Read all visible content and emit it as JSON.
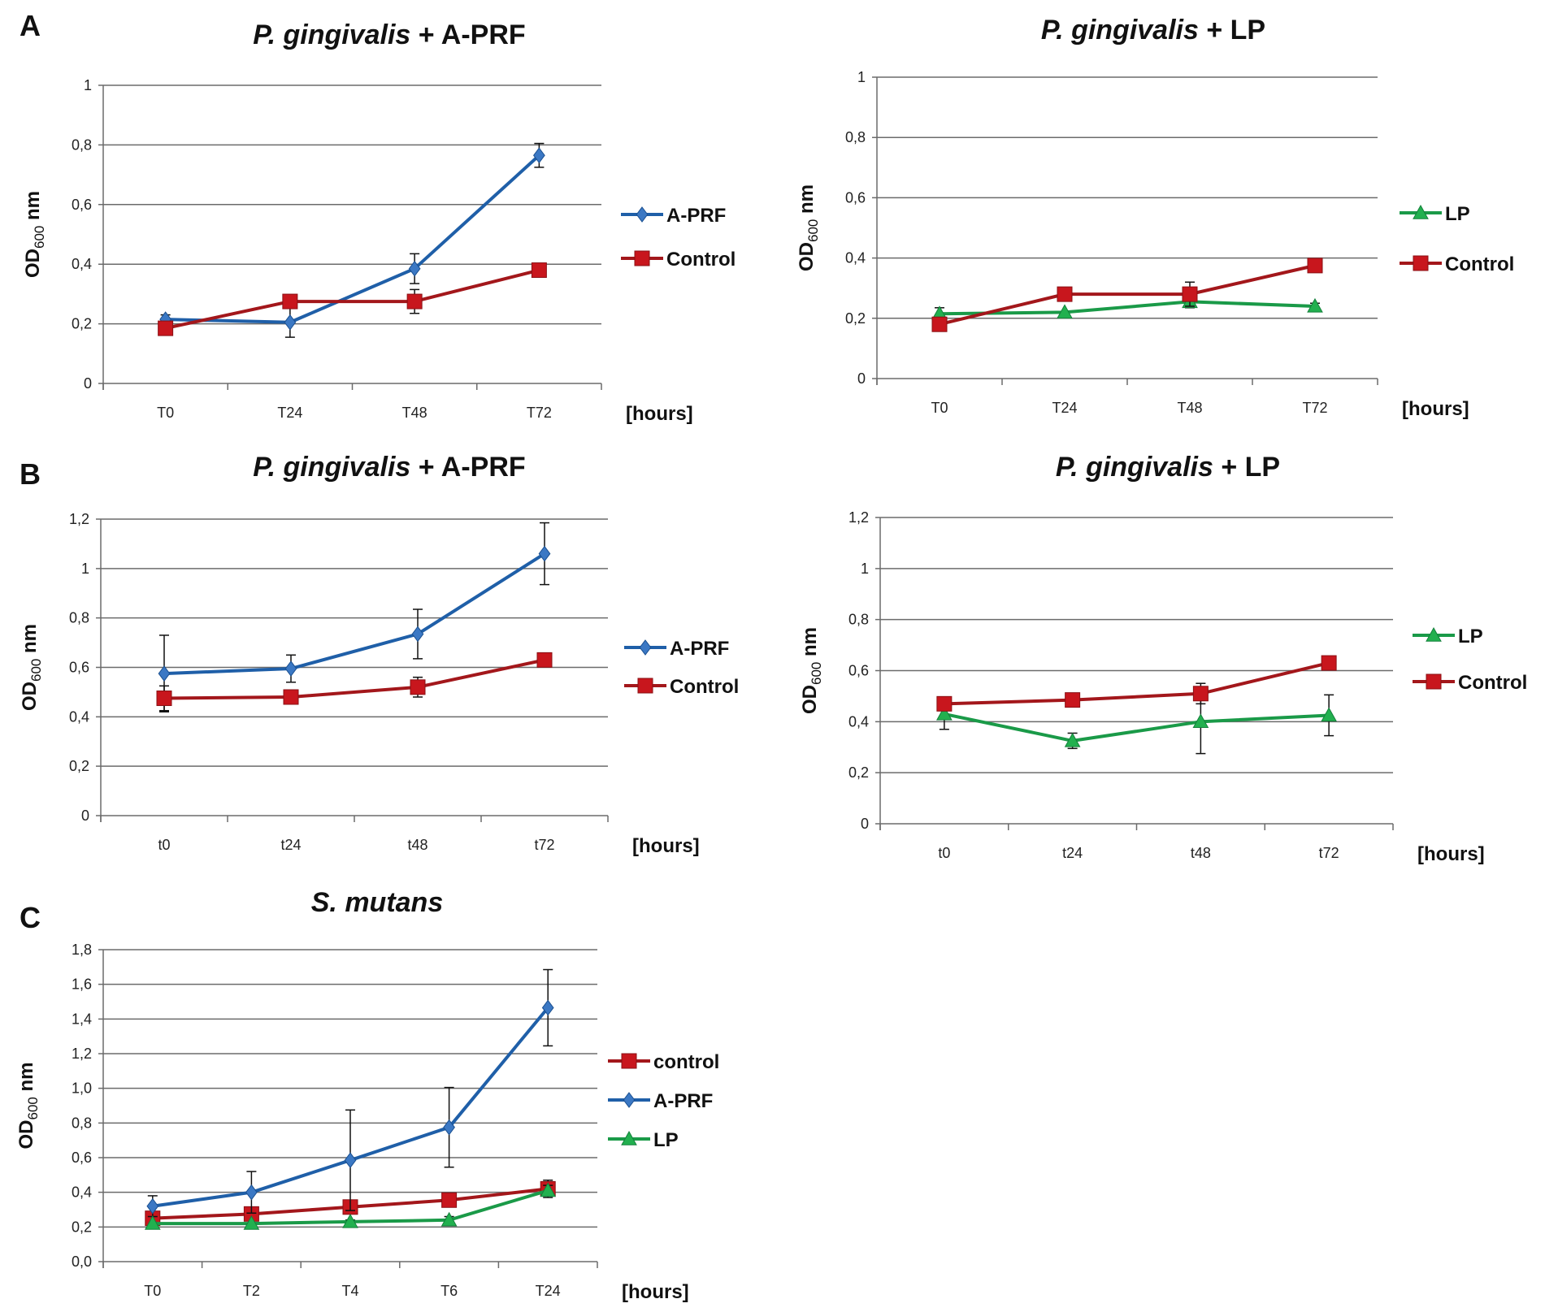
{
  "colors": {
    "blue": "#1f5fa8",
    "red": "#a3171b",
    "red_marker": "#c8161d",
    "green": "#1a9a48",
    "green_marker": "#22b04f",
    "grid": "#6b6b6b"
  },
  "chart_data": [
    {
      "panel_letter": "A",
      "type": "line",
      "title_italic": "P. gingivalis",
      "title_rest": " + A-PRF",
      "ylabel": "OD",
      "ylabel_sub": "600",
      "ylabel_unit": " nm",
      "xlabel": "[hours]",
      "categories": [
        "T0",
        "T24",
        "T48",
        "T72"
      ],
      "ylim": [
        0,
        1
      ],
      "yticks": [
        0,
        0.2,
        0.4,
        0.6,
        0.8,
        1
      ],
      "ytick_labels": [
        "0",
        "0,2",
        "0,4",
        "0,6",
        "0,8",
        "1"
      ],
      "grid": true,
      "legend": "right",
      "series": [
        {
          "name": "A-PRF",
          "marker": "diamond",
          "color": "blue",
          "values": [
            0.215,
            0.205,
            0.385,
            0.765
          ],
          "errors": [
            0.015,
            0.05,
            0.05,
            0.04
          ]
        },
        {
          "name": "Control",
          "marker": "square",
          "color": "red",
          "values": [
            0.185,
            0.275,
            0.275,
            0.38
          ],
          "errors": [
            0,
            0,
            0.04,
            0
          ]
        }
      ]
    },
    {
      "panel_letter": "",
      "type": "line",
      "title_italic": "P. gingivalis",
      "title_rest": " +  LP",
      "ylabel": "OD",
      "ylabel_sub": "600",
      "ylabel_unit": " nm",
      "xlabel": "[hours]",
      "categories": [
        "T0",
        "T24",
        "T48",
        "T72"
      ],
      "ylim": [
        0,
        1
      ],
      "yticks": [
        0,
        0.2,
        0.4,
        0.6,
        0.8,
        1
      ],
      "ytick_labels": [
        "0",
        "0,2",
        "0,4",
        "0,6",
        "0,8",
        "1"
      ],
      "grid": true,
      "legend": "right",
      "series": [
        {
          "name": "LP",
          "marker": "triangle",
          "color": "green",
          "values": [
            0.215,
            0.22,
            0.255,
            0.24
          ],
          "errors": [
            0.02,
            0,
            0.02,
            0.01
          ]
        },
        {
          "name": "Control",
          "marker": "square",
          "color": "red",
          "values": [
            0.18,
            0.28,
            0.28,
            0.375
          ],
          "errors": [
            0,
            0,
            0.04,
            0
          ]
        }
      ]
    },
    {
      "panel_letter": "B",
      "type": "line",
      "title_italic": "P. gingivalis",
      "title_rest": " + A-PRF",
      "ylabel": "OD",
      "ylabel_sub": "600",
      "ylabel_unit": " nm",
      "xlabel": "[hours]",
      "categories": [
        "t0",
        "t24",
        "t48",
        "t72"
      ],
      "ylim": [
        0,
        1.2
      ],
      "yticks": [
        0,
        0.2,
        0.4,
        0.6,
        0.8,
        1,
        1.2
      ],
      "ytick_labels": [
        "0",
        "0,2",
        "0,4",
        "0,6",
        "0,8",
        "1",
        "1,2"
      ],
      "grid": true,
      "legend": "right",
      "series": [
        {
          "name": "A-PRF",
          "marker": "diamond",
          "color": "blue",
          "values": [
            0.575,
            0.595,
            0.735,
            1.06
          ],
          "errors": [
            0.155,
            0.055,
            0.1,
            0.125
          ]
        },
        {
          "name": "Control",
          "marker": "square",
          "color": "red",
          "values": [
            0.475,
            0.48,
            0.52,
            0.63
          ],
          "errors": [
            0.05,
            0,
            0.04,
            0
          ]
        }
      ]
    },
    {
      "panel_letter": "",
      "type": "line",
      "title_italic": "P. gingivalis",
      "title_rest": " + LP",
      "ylabel": "OD",
      "ylabel_sub": "600",
      "ylabel_unit": " nm",
      "xlabel": "[hours]",
      "categories": [
        "t0",
        "t24",
        "t48",
        "t72"
      ],
      "ylim": [
        0,
        1.2
      ],
      "yticks": [
        0,
        0.2,
        0.4,
        0.6,
        0.8,
        1,
        1.2
      ],
      "ytick_labels": [
        "0",
        "0,2",
        "0,4",
        "0,6",
        "0,8",
        "1",
        "1,2"
      ],
      "grid": true,
      "legend": "right",
      "series": [
        {
          "name": "LP",
          "marker": "triangle",
          "color": "green",
          "values": [
            0.43,
            0.325,
            0.4,
            0.425
          ],
          "errors": [
            0.06,
            0.03,
            0.125,
            0.08
          ]
        },
        {
          "name": "Control",
          "marker": "square",
          "color": "red",
          "values": [
            0.47,
            0.485,
            0.51,
            0.63
          ],
          "errors": [
            0,
            0,
            0.04,
            0
          ]
        }
      ]
    },
    {
      "panel_letter": "C",
      "type": "line",
      "title_italic": "S. mutans",
      "title_rest": "",
      "ylabel": "OD",
      "ylabel_sub": "600",
      "ylabel_unit": " nm",
      "xlabel": "[hours]",
      "categories": [
        "T0",
        "T2",
        "T4",
        "T6",
        "T24"
      ],
      "ylim": [
        0,
        1.8
      ],
      "yticks": [
        0,
        0.2,
        0.4,
        0.6,
        0.8,
        1.0,
        1.2,
        1.4,
        1.6,
        1.8
      ],
      "ytick_labels": [
        "0,0",
        "0,2",
        "0,4",
        "0,6",
        "0,8",
        "1,0",
        "1,2",
        "1,4",
        "1,6",
        "1,8"
      ],
      "grid": true,
      "legend": "right",
      "series": [
        {
          "name": "control",
          "marker": "square",
          "color": "red",
          "values": [
            0.25,
            0.275,
            0.315,
            0.355,
            0.42
          ],
          "errors": [
            0,
            0,
            0,
            0,
            0.05
          ]
        },
        {
          "name": "A-PRF",
          "marker": "diamond",
          "color": "blue",
          "values": [
            0.32,
            0.4,
            0.585,
            0.775,
            1.465
          ],
          "errors": [
            0.06,
            0.12,
            0.29,
            0.23,
            0.22
          ]
        },
        {
          "name": "LP",
          "marker": "triangle",
          "color": "green",
          "values": [
            0.22,
            0.22,
            0.23,
            0.24,
            0.41
          ],
          "errors": [
            0,
            0,
            0.01,
            0.02,
            0.03
          ]
        }
      ]
    }
  ]
}
